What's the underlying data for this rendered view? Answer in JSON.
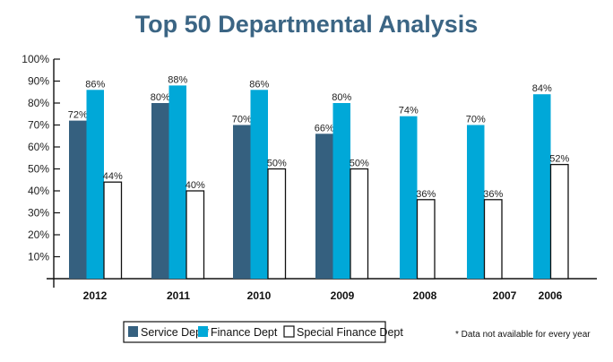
{
  "chart_data": {
    "type": "bar",
    "title": "Top 50 Departmental Analysis",
    "xlabel": "",
    "ylabel": "",
    "ylim": [
      0,
      100
    ],
    "yticks": [
      "10%",
      "20%",
      "30%",
      "40%",
      "50%",
      "60%",
      "70%",
      "80%",
      "90%",
      "100%"
    ],
    "categories": [
      "2012",
      "2011",
      "2010",
      "2009",
      "2008",
      "2007",
      "2006"
    ],
    "series": [
      {
        "name": "Service Dept*",
        "color": "#35607f",
        "values": [
          72,
          80,
          70,
          66,
          null,
          null,
          null
        ]
      },
      {
        "name": "Finance Dept",
        "color": "#00a8d8",
        "values": [
          86,
          88,
          86,
          80,
          74,
          70,
          84
        ]
      },
      {
        "name": "Special Finance Dept",
        "color": "#ffffff",
        "values": [
          44,
          40,
          50,
          50,
          36,
          36,
          52
        ]
      }
    ],
    "legend": "bottom",
    "footnote": "* Data not available for every year",
    "grid": false
  }
}
